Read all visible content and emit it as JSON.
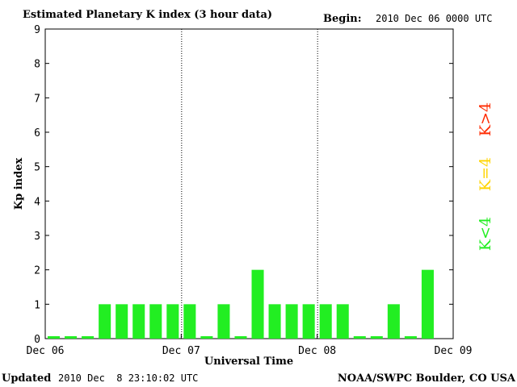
{
  "chart_data": {
    "type": "bar",
    "title": "Estimated Planetary K index (3 hour data)",
    "begin_label": "Begin:",
    "begin_value": "2010 Dec 06 0000 UTC",
    "xlabel": "Universal Time",
    "ylabel": "Kp index",
    "ylim": [
      0,
      9
    ],
    "y_ticks": [
      "0",
      "1",
      "2",
      "3",
      "4",
      "5",
      "6",
      "7",
      "8",
      "9"
    ],
    "x_ticks": [
      "Dec 06",
      "Dec 07",
      "Dec 08",
      "Dec 09"
    ],
    "day_dividers": [
      "Dec 07",
      "Dec 08"
    ],
    "values": [
      0,
      0,
      0,
      1,
      1,
      1,
      1,
      1,
      1,
      0,
      1,
      0,
      2,
      1,
      1,
      1,
      1,
      1,
      0,
      0,
      1,
      0,
      2
    ],
    "legend": [
      {
        "label": "K>4",
        "color": "#ff2a00"
      },
      {
        "label": "K=4",
        "color": "#ffd400"
      },
      {
        "label": "K<4",
        "color": "#22ee22"
      }
    ],
    "bar_color": "#22ee22"
  },
  "footer": {
    "updated_label": "Updated",
    "updated_value": "2010 Dec  8 23:10:02 UTC",
    "source": "NOAA/SWPC Boulder, CO USA"
  }
}
